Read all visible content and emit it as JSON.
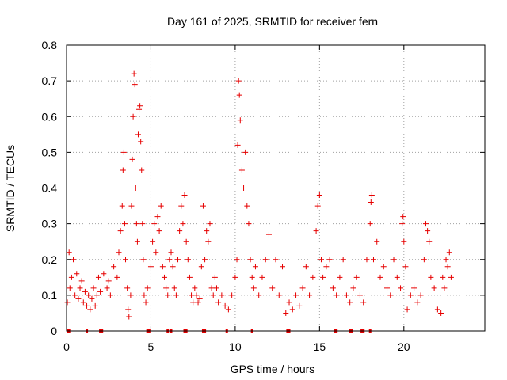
{
  "colors": {
    "series": "#e60000",
    "axis": "#000000",
    "grid": "#a0a0a0"
  },
  "chart_data": {
    "type": "scatter",
    "title": "Day 161 of 2025, SRMTID for receiver fern",
    "xlabel": "GPS time / hours",
    "ylabel": "SRMTID / TECUs",
    "xlim": [
      0,
      24.8
    ],
    "ylim": [
      0,
      0.8
    ],
    "xticks": [
      0,
      5,
      10,
      15,
      20
    ],
    "yticks": [
      0,
      0.1,
      0.2,
      0.3,
      0.4,
      0.5,
      0.6,
      0.7,
      0.8
    ],
    "xtick_labels": [
      "0",
      "5",
      "10",
      "15",
      "20"
    ],
    "ytick_labels": [
      "0",
      "0.1",
      "0.2",
      "0.3",
      "0.4",
      "0.5",
      "0.6",
      "0.7",
      "0.8"
    ],
    "grid": true,
    "marker": "+",
    "zero_value_times": [
      0.1,
      0.15,
      1.2,
      2.0,
      2.1,
      4.8,
      4.9,
      6.0,
      6.2,
      7.0,
      7.1,
      8.1,
      8.2,
      9.5,
      11.0,
      13.1,
      13.2,
      15.9,
      16.0,
      16.8,
      16.9,
      17.5,
      17.6,
      18.0
    ],
    "series": [
      {
        "name": "SRMTID",
        "points": [
          [
            0.05,
            0.08
          ],
          [
            0.15,
            0.22
          ],
          [
            0.2,
            0.12
          ],
          [
            0.3,
            0.15
          ],
          [
            0.4,
            0.2
          ],
          [
            0.5,
            0.1
          ],
          [
            0.6,
            0.16
          ],
          [
            0.7,
            0.09
          ],
          [
            0.8,
            0.12
          ],
          [
            0.9,
            0.14
          ],
          [
            1.0,
            0.08
          ],
          [
            1.1,
            0.11
          ],
          [
            1.2,
            0.07
          ],
          [
            1.3,
            0.1
          ],
          [
            1.4,
            0.06
          ],
          [
            1.5,
            0.09
          ],
          [
            1.6,
            0.12
          ],
          [
            1.7,
            0.07
          ],
          [
            1.8,
            0.1
          ],
          [
            1.9,
            0.15
          ],
          [
            2.0,
            0.11
          ],
          [
            2.2,
            0.16
          ],
          [
            2.4,
            0.12
          ],
          [
            2.5,
            0.14
          ],
          [
            2.6,
            0.1
          ],
          [
            2.8,
            0.18
          ],
          [
            3.0,
            0.15
          ],
          [
            3.1,
            0.22
          ],
          [
            3.2,
            0.28
          ],
          [
            3.3,
            0.35
          ],
          [
            3.35,
            0.45
          ],
          [
            3.4,
            0.5
          ],
          [
            3.45,
            0.3
          ],
          [
            3.5,
            0.2
          ],
          [
            3.6,
            0.12
          ],
          [
            3.65,
            0.06
          ],
          [
            3.7,
            0.04
          ],
          [
            3.8,
            0.1
          ],
          [
            3.85,
            0.35
          ],
          [
            3.9,
            0.48
          ],
          [
            3.95,
            0.6
          ],
          [
            4.0,
            0.72
          ],
          [
            4.05,
            0.69
          ],
          [
            4.1,
            0.4
          ],
          [
            4.15,
            0.3
          ],
          [
            4.2,
            0.25
          ],
          [
            4.25,
            0.55
          ],
          [
            4.3,
            0.62
          ],
          [
            4.35,
            0.63
          ],
          [
            4.4,
            0.53
          ],
          [
            4.45,
            0.45
          ],
          [
            4.5,
            0.3
          ],
          [
            4.55,
            0.2
          ],
          [
            4.6,
            0.1
          ],
          [
            4.7,
            0.08
          ],
          [
            4.8,
            0.12
          ],
          [
            5.0,
            0.18
          ],
          [
            5.1,
            0.25
          ],
          [
            5.2,
            0.3
          ],
          [
            5.3,
            0.22
          ],
          [
            5.4,
            0.32
          ],
          [
            5.5,
            0.28
          ],
          [
            5.6,
            0.35
          ],
          [
            5.7,
            0.18
          ],
          [
            5.8,
            0.15
          ],
          [
            5.9,
            0.12
          ],
          [
            6.0,
            0.1
          ],
          [
            6.1,
            0.2
          ],
          [
            6.2,
            0.22
          ],
          [
            6.3,
            0.18
          ],
          [
            6.4,
            0.12
          ],
          [
            6.5,
            0.1
          ],
          [
            6.6,
            0.2
          ],
          [
            6.7,
            0.28
          ],
          [
            6.8,
            0.35
          ],
          [
            6.9,
            0.3
          ],
          [
            7.0,
            0.38
          ],
          [
            7.1,
            0.25
          ],
          [
            7.2,
            0.2
          ],
          [
            7.3,
            0.15
          ],
          [
            7.4,
            0.1
          ],
          [
            7.5,
            0.08
          ],
          [
            7.6,
            0.12
          ],
          [
            7.7,
            0.1
          ],
          [
            7.8,
            0.08
          ],
          [
            7.9,
            0.09
          ],
          [
            8.0,
            0.18
          ],
          [
            8.1,
            0.35
          ],
          [
            8.2,
            0.2
          ],
          [
            8.3,
            0.28
          ],
          [
            8.4,
            0.25
          ],
          [
            8.5,
            0.3
          ],
          [
            8.6,
            0.12
          ],
          [
            8.7,
            0.1
          ],
          [
            8.8,
            0.15
          ],
          [
            8.9,
            0.12
          ],
          [
            9.0,
            0.08
          ],
          [
            9.2,
            0.1
          ],
          [
            9.4,
            0.07
          ],
          [
            9.6,
            0.06
          ],
          [
            9.8,
            0.1
          ],
          [
            10.0,
            0.15
          ],
          [
            10.1,
            0.2
          ],
          [
            10.15,
            0.52
          ],
          [
            10.2,
            0.7
          ],
          [
            10.25,
            0.66
          ],
          [
            10.3,
            0.59
          ],
          [
            10.4,
            0.45
          ],
          [
            10.5,
            0.4
          ],
          [
            10.6,
            0.5
          ],
          [
            10.7,
            0.35
          ],
          [
            10.8,
            0.3
          ],
          [
            10.9,
            0.2
          ],
          [
            11.0,
            0.15
          ],
          [
            11.1,
            0.12
          ],
          [
            11.2,
            0.18
          ],
          [
            11.4,
            0.1
          ],
          [
            11.6,
            0.15
          ],
          [
            11.8,
            0.2
          ],
          [
            12.0,
            0.27
          ],
          [
            12.2,
            0.12
          ],
          [
            12.4,
            0.2
          ],
          [
            12.6,
            0.1
          ],
          [
            12.8,
            0.18
          ],
          [
            13.0,
            0.05
          ],
          [
            13.2,
            0.08
          ],
          [
            13.4,
            0.06
          ],
          [
            13.6,
            0.1
          ],
          [
            13.8,
            0.07
          ],
          [
            14.0,
            0.12
          ],
          [
            14.2,
            0.18
          ],
          [
            14.4,
            0.1
          ],
          [
            14.6,
            0.15
          ],
          [
            14.8,
            0.28
          ],
          [
            14.9,
            0.35
          ],
          [
            15.0,
            0.38
          ],
          [
            15.1,
            0.2
          ],
          [
            15.2,
            0.15
          ],
          [
            15.4,
            0.18
          ],
          [
            15.6,
            0.2
          ],
          [
            15.8,
            0.12
          ],
          [
            16.0,
            0.1
          ],
          [
            16.2,
            0.15
          ],
          [
            16.4,
            0.2
          ],
          [
            16.6,
            0.1
          ],
          [
            16.8,
            0.08
          ],
          [
            17.0,
            0.12
          ],
          [
            17.2,
            0.15
          ],
          [
            17.4,
            0.1
          ],
          [
            17.6,
            0.08
          ],
          [
            17.8,
            0.2
          ],
          [
            18.0,
            0.3
          ],
          [
            18.05,
            0.36
          ],
          [
            18.1,
            0.38
          ],
          [
            18.2,
            0.2
          ],
          [
            18.4,
            0.25
          ],
          [
            18.6,
            0.15
          ],
          [
            18.8,
            0.18
          ],
          [
            19.0,
            0.12
          ],
          [
            19.2,
            0.1
          ],
          [
            19.4,
            0.2
          ],
          [
            19.6,
            0.15
          ],
          [
            19.8,
            0.12
          ],
          [
            19.9,
            0.3
          ],
          [
            19.95,
            0.32
          ],
          [
            20.0,
            0.25
          ],
          [
            20.1,
            0.18
          ],
          [
            20.2,
            0.06
          ],
          [
            20.4,
            0.1
          ],
          [
            20.6,
            0.12
          ],
          [
            20.8,
            0.08
          ],
          [
            21.0,
            0.1
          ],
          [
            21.2,
            0.2
          ],
          [
            21.3,
            0.3
          ],
          [
            21.4,
            0.28
          ],
          [
            21.5,
            0.25
          ],
          [
            21.6,
            0.15
          ],
          [
            21.8,
            0.12
          ],
          [
            22.0,
            0.06
          ],
          [
            22.2,
            0.05
          ],
          [
            22.3,
            0.15
          ],
          [
            22.4,
            0.12
          ],
          [
            22.5,
            0.2
          ],
          [
            22.6,
            0.18
          ],
          [
            22.7,
            0.22
          ],
          [
            22.8,
            0.15
          ]
        ]
      }
    ]
  }
}
